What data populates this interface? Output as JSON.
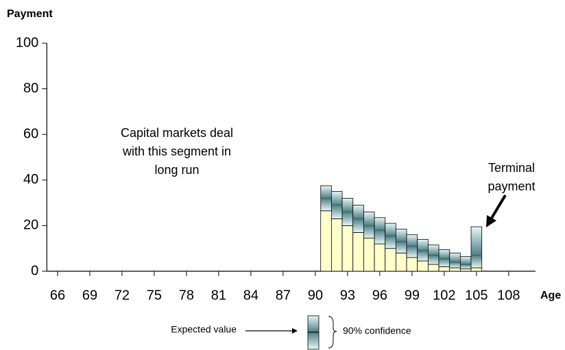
{
  "chart_data": {
    "type": "confidence-bar",
    "y_label": "Payment",
    "x_label": "Age",
    "x": [
      91,
      92,
      93,
      94,
      95,
      96,
      97,
      98,
      99,
      100,
      101,
      102,
      103,
      104,
      105
    ],
    "values": [
      32,
      29,
      26,
      23,
      20,
      18,
      15.5,
      13,
      11,
      9,
      7,
      5.5,
      4,
      3,
      7
    ],
    "lower": [
      26.5,
      23,
      20,
      17,
      14.5,
      12,
      10,
      8,
      6,
      4.5,
      3,
      2,
      1.5,
      1,
      1.5
    ],
    "upper": [
      37.5,
      35,
      32,
      29,
      26,
      23.5,
      21,
      18.5,
      16,
      14,
      11.5,
      9.5,
      8,
      6.5,
      19.5
    ],
    "lower_color": "#ffffcc",
    "band_color": "#dff3f3",
    "expected_color": "#3d6a70",
    "xlim": [
      65,
      110.5
    ],
    "xticks": [
      66,
      69,
      72,
      75,
      78,
      81,
      84,
      87,
      90,
      93,
      96,
      99,
      102,
      105,
      108
    ],
    "ylim": [
      0,
      100
    ],
    "yticks": [
      0,
      20,
      40,
      60,
      80,
      100
    ],
    "annotations": [
      {
        "lines": [
          "Capital markets deal",
          "with this segment in",
          "long run"
        ]
      },
      {
        "lines": [
          "Terminal",
          "payment"
        ]
      }
    ],
    "legend": {
      "expected": "Expected value",
      "confidence": "90% confidence"
    }
  }
}
